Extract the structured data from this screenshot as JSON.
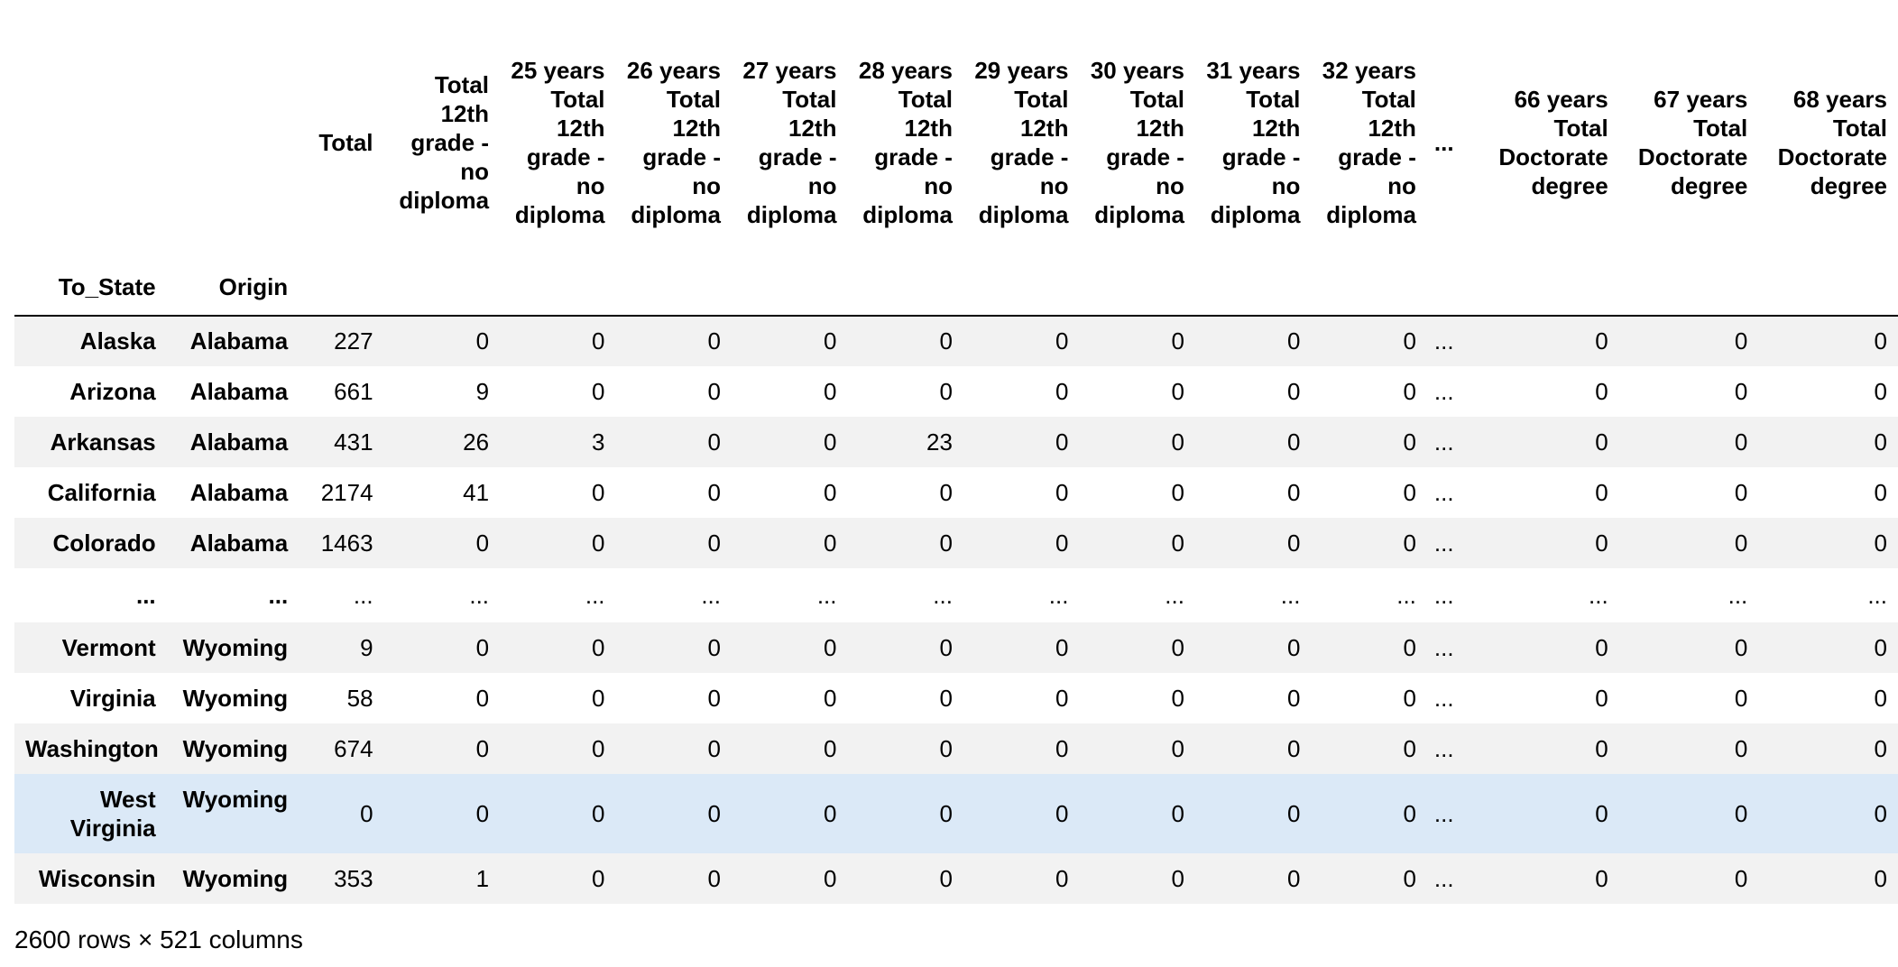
{
  "header": {
    "columns": [
      "",
      "",
      "Total",
      "Total 12th grade - no diploma",
      "25 years Total 12th grade - no diploma",
      "26 years Total 12th grade - no diploma",
      "27 years Total 12th grade - no diploma",
      "28 years Total 12th grade - no diploma",
      "29 years Total 12th grade - no diploma",
      "30 years Total 12th grade - no diploma",
      "31 years Total 12th grade - no diploma",
      "32 years Total 12th grade - no diploma",
      "...",
      "66 years Total Doctorate degree",
      "67 years Total Doctorate degree",
      "68 years Total Doctorate degree"
    ],
    "index_names": [
      "To_State",
      "Origin"
    ]
  },
  "rows": [
    {
      "state": "Alaska",
      "origin": "Alabama",
      "values": [
        "227",
        "0",
        "0",
        "0",
        "0",
        "0",
        "0",
        "0",
        "0",
        "0",
        "...",
        "0",
        "0",
        "0"
      ]
    },
    {
      "state": "Arizona",
      "origin": "Alabama",
      "values": [
        "661",
        "9",
        "0",
        "0",
        "0",
        "0",
        "0",
        "0",
        "0",
        "0",
        "...",
        "0",
        "0",
        "0"
      ]
    },
    {
      "state": "Arkansas",
      "origin": "Alabama",
      "values": [
        "431",
        "26",
        "3",
        "0",
        "0",
        "23",
        "0",
        "0",
        "0",
        "0",
        "...",
        "0",
        "0",
        "0"
      ]
    },
    {
      "state": "California",
      "origin": "Alabama",
      "values": [
        "2174",
        "41",
        "0",
        "0",
        "0",
        "0",
        "0",
        "0",
        "0",
        "0",
        "...",
        "0",
        "0",
        "0"
      ]
    },
    {
      "state": "Colorado",
      "origin": "Alabama",
      "values": [
        "1463",
        "0",
        "0",
        "0",
        "0",
        "0",
        "0",
        "0",
        "0",
        "0",
        "...",
        "0",
        "0",
        "0"
      ]
    },
    {
      "state": "...",
      "origin": "...",
      "values": [
        "...",
        "...",
        "...",
        "...",
        "...",
        "...",
        "...",
        "...",
        "...",
        "...",
        "...",
        "...",
        "...",
        "..."
      ]
    },
    {
      "state": "Vermont",
      "origin": "Wyoming",
      "values": [
        "9",
        "0",
        "0",
        "0",
        "0",
        "0",
        "0",
        "0",
        "0",
        "0",
        "...",
        "0",
        "0",
        "0"
      ]
    },
    {
      "state": "Virginia",
      "origin": "Wyoming",
      "values": [
        "58",
        "0",
        "0",
        "0",
        "0",
        "0",
        "0",
        "0",
        "0",
        "0",
        "...",
        "0",
        "0",
        "0"
      ]
    },
    {
      "state": "Washington",
      "origin": "Wyoming",
      "values": [
        "674",
        "0",
        "0",
        "0",
        "0",
        "0",
        "0",
        "0",
        "0",
        "0",
        "...",
        "0",
        "0",
        "0"
      ]
    },
    {
      "state": "West Virginia",
      "origin": "Wyoming",
      "values": [
        "0",
        "0",
        "0",
        "0",
        "0",
        "0",
        "0",
        "0",
        "0",
        "0",
        "...",
        "0",
        "0",
        "0"
      ]
    },
    {
      "state": "Wisconsin",
      "origin": "Wyoming",
      "values": [
        "353",
        "1",
        "0",
        "0",
        "0",
        "0",
        "0",
        "0",
        "0",
        "0",
        "...",
        "0",
        "0",
        "0"
      ]
    }
  ],
  "footer": {
    "dimensions": "2600 rows × 521 columns"
  },
  "colors": {
    "row_stripe": "#f2f2f2",
    "row_hover": "#dbe9f7",
    "header_rule": "#000000"
  }
}
